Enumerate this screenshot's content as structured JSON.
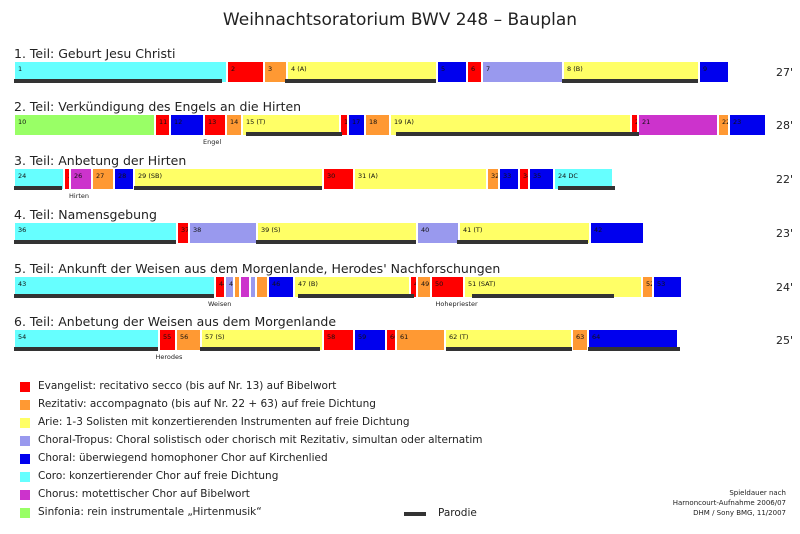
{
  "title": "Weihnachtsoratorium BWV 248 – Bauplan",
  "colors": {
    "E": "#ff0000",
    "R": "#ff9933",
    "A": "#ffff66",
    "T": "#9999ee",
    "C": "#0000ee",
    "K": "#66ffff",
    "M": "#cc33cc",
    "S": "#99ff66"
  },
  "parts": [
    {
      "label": "1. Teil: Geburt Jesu Christi",
      "duration": "27'",
      "segments": [
        {
          "l": "1",
          "c": "K",
          "w": 213
        },
        {
          "l": "2",
          "c": "E",
          "w": 37
        },
        {
          "l": "3",
          "c": "R",
          "w": 23
        },
        {
          "l": "4 (A)",
          "c": "A",
          "w": 150
        },
        {
          "l": "5",
          "c": "C",
          "w": 30
        },
        {
          "l": "6",
          "c": "E",
          "w": 15
        },
        {
          "l": "7",
          "c": "T",
          "w": 81
        },
        {
          "l": "8 (B)",
          "c": "A",
          "w": 136
        },
        {
          "l": "9",
          "c": "C",
          "w": 30
        }
      ],
      "parody": [
        [
          14,
          222
        ],
        [
          285,
          436
        ],
        [
          562,
          698
        ]
      ],
      "notes": []
    },
    {
      "label": "2. Teil: Verkündigung des Engels an die Hirten",
      "duration": "28'",
      "segments": [
        {
          "l": "10",
          "c": "S",
          "w": 141
        },
        {
          "l": "11",
          "c": "E",
          "w": 15
        },
        {
          "l": "12",
          "c": "C",
          "w": 34
        },
        {
          "l": "13",
          "c": "E",
          "w": 22
        },
        {
          "l": "14",
          "c": "R",
          "w": 16
        },
        {
          "l": "15 (T)",
          "c": "A",
          "w": 98
        },
        {
          "l": "16",
          "c": "E",
          "w": 8
        },
        {
          "l": "17",
          "c": "C",
          "w": 17
        },
        {
          "l": "18",
          "c": "R",
          "w": 25
        },
        {
          "l": "19 (A)",
          "c": "A",
          "w": 241
        },
        {
          "l": "20",
          "c": "E",
          "w": 7
        },
        {
          "l": "21",
          "c": "M",
          "w": 80
        },
        {
          "l": "22",
          "c": "R",
          "w": 11
        },
        {
          "l": "23",
          "c": "C",
          "w": 37
        }
      ],
      "parody": [
        [
          246,
          342
        ],
        [
          396,
          639
        ]
      ],
      "notes": [
        {
          "text": "Engel",
          "under": 3
        }
      ]
    },
    {
      "label": "3. Teil: Anbetung der Hirten",
      "duration": "22'",
      "segments": [
        {
          "l": "24",
          "c": "K",
          "w": 50
        },
        {
          "l": "25",
          "c": "E",
          "w": 6
        },
        {
          "l": "26",
          "c": "M",
          "w": 22
        },
        {
          "l": "27",
          "c": "R",
          "w": 22
        },
        {
          "l": "28",
          "c": "C",
          "w": 20
        },
        {
          "l": "29 (SB)",
          "c": "A",
          "w": 189
        },
        {
          "l": "30",
          "c": "E",
          "w": 31
        },
        {
          "l": "31 (A)",
          "c": "A",
          "w": 133
        },
        {
          "l": "32",
          "c": "R",
          "w": 12
        },
        {
          "l": "33",
          "c": "C",
          "w": 20
        },
        {
          "l": "34",
          "c": "E",
          "w": 10
        },
        {
          "l": "35",
          "c": "C",
          "w": 25
        },
        {
          "l": "24 DC",
          "c": "K",
          "w": 59
        }
      ],
      "parody": [
        [
          14,
          62
        ],
        [
          134,
          322
        ],
        [
          558,
          615
        ]
      ],
      "notes": [
        {
          "text": "Hirten",
          "under": 2
        }
      ]
    },
    {
      "label": "4. Teil: Namensgebung",
      "duration": "23'",
      "segments": [
        {
          "l": "36",
          "c": "K",
          "w": 163
        },
        {
          "l": "37",
          "c": "E",
          "w": 12
        },
        {
          "l": "38",
          "c": "T",
          "w": 68
        },
        {
          "l": "39 (S)",
          "c": "A",
          "w": 160
        },
        {
          "l": "40",
          "c": "T",
          "w": 42
        },
        {
          "l": "41 (T)",
          "c": "A",
          "w": 131
        },
        {
          "l": "42",
          "c": "C",
          "w": 54
        }
      ],
      "parody": [
        [
          14,
          176
        ],
        [
          256,
          416
        ],
        [
          457,
          588
        ]
      ],
      "notes": []
    },
    {
      "label": "5. Teil: Ankunft der Weisen aus dem Morgenlande, Herodes' Nachforschungen",
      "duration": "24'",
      "segments": [
        {
          "l": "43",
          "c": "K",
          "w": 201
        },
        {
          "l": "44",
          "c": "E",
          "w": 10
        },
        {
          "l": "45",
          "c": "T",
          "w": 9
        },
        {
          "l": "",
          "c": "R",
          "w": 6
        },
        {
          "l": "",
          "c": "M",
          "w": 10
        },
        {
          "l": "",
          "c": "T",
          "w": 6
        },
        {
          "l": "",
          "c": "R",
          "w": 12
        },
        {
          "l": "46",
          "c": "C",
          "w": 26
        },
        {
          "l": "47 (B)",
          "c": "A",
          "w": 116
        },
        {
          "l": "48",
          "c": "E",
          "w": 7
        },
        {
          "l": "49",
          "c": "R",
          "w": 14
        },
        {
          "l": "50",
          "c": "E",
          "w": 33
        },
        {
          "l": "51 (SAT)",
          "c": "A",
          "w": 178
        },
        {
          "l": "52",
          "c": "R",
          "w": 11
        },
        {
          "l": "53",
          "c": "C",
          "w": 29
        }
      ],
      "parody": [
        [
          14,
          214
        ],
        [
          298,
          414
        ],
        [
          472,
          614
        ]
      ],
      "notes": [
        {
          "text": "Weisen",
          "under": 1
        },
        {
          "text": "Hohepriester",
          "under": 11
        }
      ]
    },
    {
      "label": "6. Teil: Anbetung der Weisen aus dem Morgenlande",
      "duration": "25'",
      "segments": [
        {
          "l": "54",
          "c": "K",
          "w": 145
        },
        {
          "l": "55",
          "c": "E",
          "w": 17
        },
        {
          "l": "56",
          "c": "R",
          "w": 25
        },
        {
          "l": "57 (S)",
          "c": "A",
          "w": 122
        },
        {
          "l": "58",
          "c": "E",
          "w": 31
        },
        {
          "l": "59",
          "c": "C",
          "w": 32
        },
        {
          "l": "60",
          "c": "E",
          "w": 10
        },
        {
          "l": "61",
          "c": "R",
          "w": 49
        },
        {
          "l": "62 (T)",
          "c": "A",
          "w": 127
        },
        {
          "l": "63",
          "c": "R",
          "w": 16
        },
        {
          "l": "64",
          "c": "C",
          "w": 90
        }
      ],
      "parody": [
        [
          14,
          158
        ],
        [
          200,
          320
        ],
        [
          446,
          572
        ],
        [
          588,
          680
        ]
      ],
      "notes": [
        {
          "text": "Herodes",
          "under": 1
        }
      ]
    }
  ],
  "legend": [
    {
      "c": "E",
      "label": "Evangelist: recitativo secco (bis auf Nr. 13) auf Bibelwort"
    },
    {
      "c": "R",
      "label": "Rezitativ: accompagnato (bis auf Nr. 22 + 63) auf freie Dichtung"
    },
    {
      "c": "A",
      "label": "Arie: 1-3 Solisten mit konzertierenden Instrumenten auf freie Dichtung"
    },
    {
      "c": "T",
      "label": "Choral-Tropus: Choral solistisch oder chorisch mit Rezitativ, simultan oder alternatim"
    },
    {
      "c": "C",
      "label": "Choral: überwiegend homophoner Chor auf Kirchenlied"
    },
    {
      "c": "K",
      "label": "Coro: konzertierender Chor auf freie Dichtung"
    },
    {
      "c": "M",
      "label": "Chorus: motettischer Chor auf Bibelwort"
    },
    {
      "c": "S",
      "label": "Sinfonia: rein instrumentale „Hirtenmusik“"
    }
  ],
  "parody_label": "Parodie",
  "source_lines": [
    "Spieldauer nach",
    "Harnoncourt-Aufnahme 2006/07",
    "DHM / Sony BMG, 11/2007"
  ]
}
